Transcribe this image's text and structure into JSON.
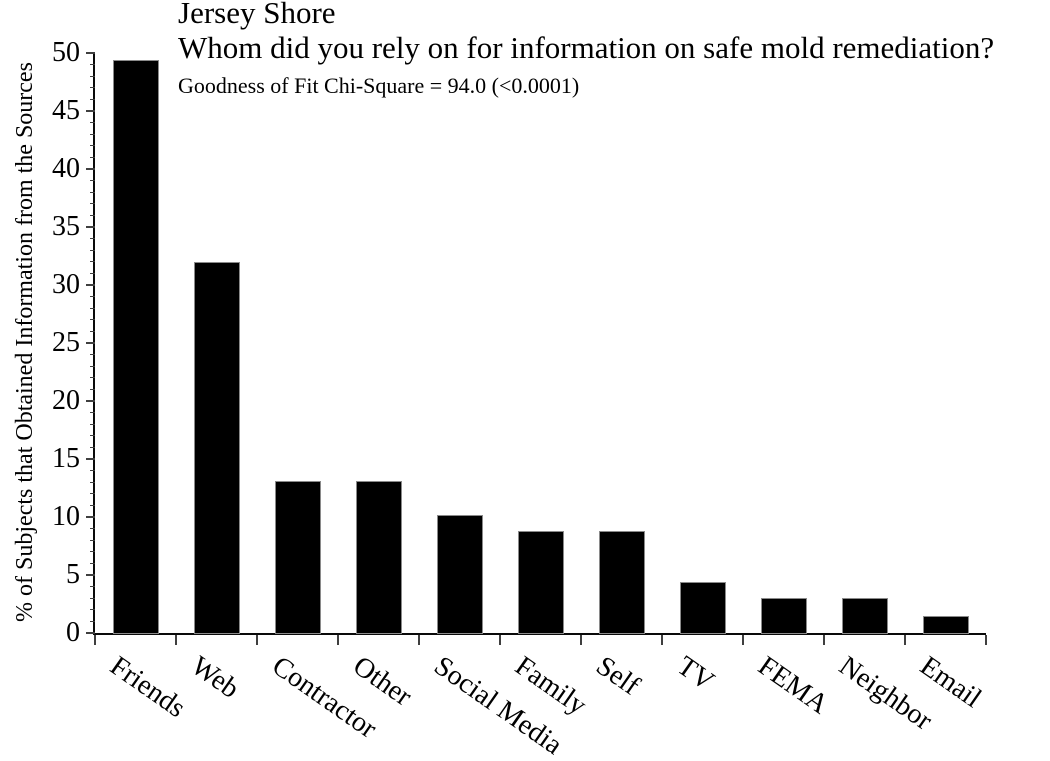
{
  "figure": {
    "title_line1": "Jersey Shore",
    "title_line2": "Whom did you rely on for information on safe mold remediation?",
    "subtitle": "Goodness of Fit Chi-Square = 94.0 (<0.0001)"
  },
  "chart_data": {
    "type": "bar",
    "title": "Jersey Shore",
    "question": "Whom did you rely on for information on safe mold remediation?",
    "annotation": "Goodness of Fit Chi-Square = 94.0 (<0.0001)",
    "categories": [
      "Friends",
      "Web",
      "Contractor",
      "Other",
      "Social Media",
      "Family",
      "Self",
      "TV",
      "FEMA",
      "Neighbor",
      "Email"
    ],
    "values": [
      49.3,
      31.9,
      13.0,
      13.0,
      10.1,
      8.7,
      8.7,
      4.3,
      2.9,
      2.9,
      1.4
    ],
    "xlabel": "",
    "ylabel": "% of Subjects that Obtained Information from the Sources",
    "ylim": [
      0,
      50
    ],
    "y_major_ticks": [
      0,
      5,
      10,
      15,
      20,
      25,
      30,
      35,
      40,
      45,
      50
    ],
    "y_minor_step": 1,
    "x_label_rotation_deg": 35,
    "grid": false,
    "legend": false,
    "bar_color": "#000000",
    "axis_color": "#0a0a0a",
    "tick_color": "#3f3f3f",
    "background_color": "#ffffff"
  }
}
